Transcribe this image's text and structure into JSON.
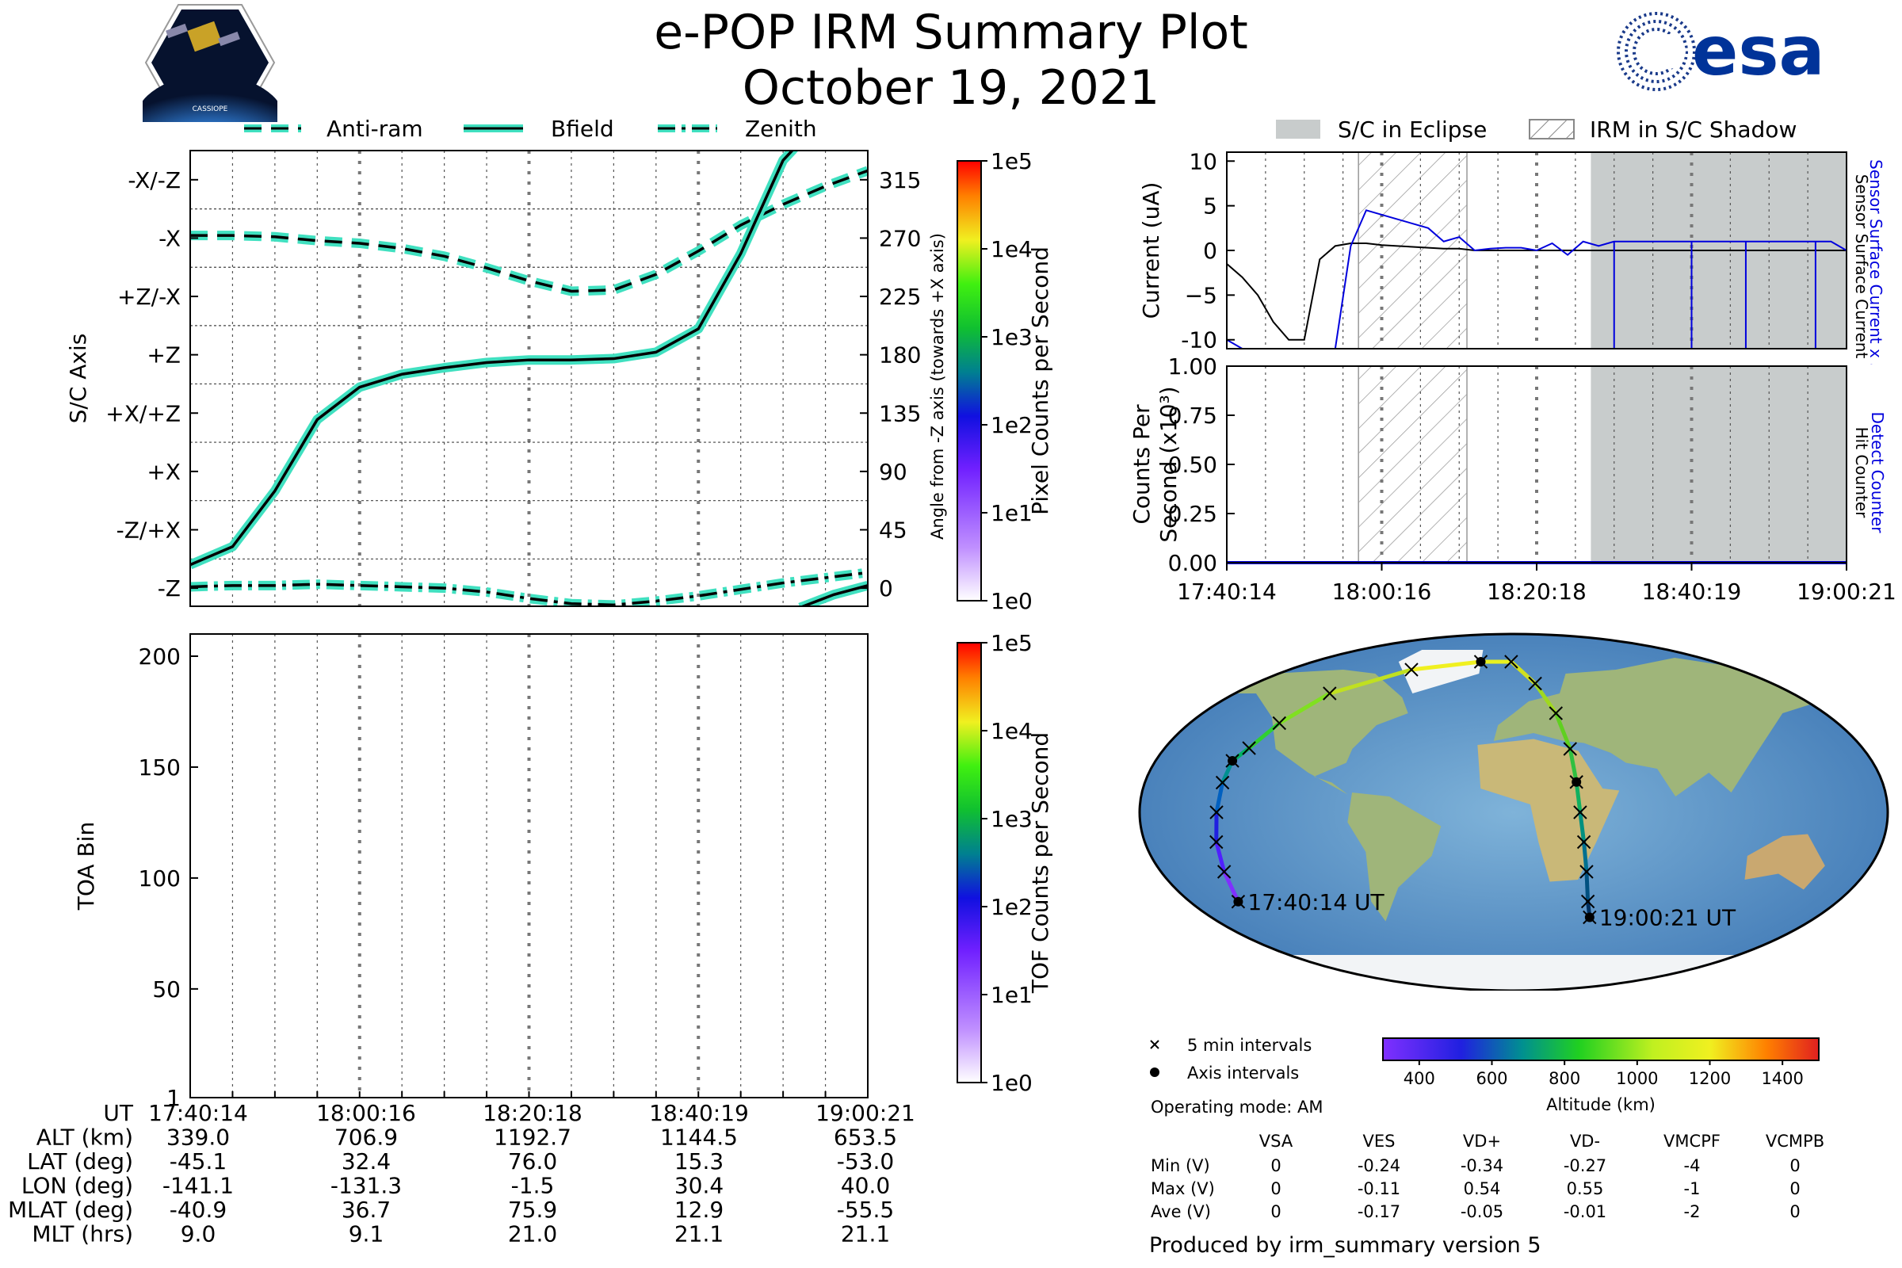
{
  "header": {
    "title": "e-POP IRM Summary Plot",
    "date": "October 19, 2021",
    "left_logo_text": "CASSIOPE",
    "right_logo_text": "esa"
  },
  "colors": {
    "bfield": "#40e0c0",
    "eclipse": "#c8cccc",
    "sensor_current": "#0000dd",
    "detect_counter": "#0000dd"
  },
  "chart_data": [
    {
      "id": "sc_axis",
      "type": "line",
      "ylabel": "S/C Axis",
      "ylabel_right": "Angle from -Z axis (towards +X axis)",
      "ylim": [
        0,
        337.5
      ],
      "left_ticks": [
        {
          "v": 0,
          "label": "-Z"
        },
        {
          "v": 45,
          "label": "-Z/+X"
        },
        {
          "v": 90,
          "label": "+X"
        },
        {
          "v": 135,
          "label": "+X/+Z"
        },
        {
          "v": 180,
          "label": "+Z"
        },
        {
          "v": 225,
          "label": "+Z/-X"
        },
        {
          "v": 270,
          "label": "-X"
        },
        {
          "v": 315,
          "label": "-X/-Z"
        }
      ],
      "right_ticks": [
        "0",
        "45",
        "90",
        "135",
        "180",
        "225",
        "270",
        "315"
      ],
      "x": [
        0,
        5,
        10,
        15,
        20,
        25,
        30,
        35,
        40,
        45,
        50,
        55,
        60,
        65,
        70,
        75,
        80
      ],
      "series": [
        {
          "name": "Anti-ram",
          "style": "dashed",
          "values": [
            272,
            272,
            271,
            268,
            266,
            262,
            256,
            247,
            237,
            229,
            230,
            242,
            260,
            280,
            296,
            310,
            322
          ]
        },
        {
          "name": "Bfield",
          "style": "solid",
          "values": [
            18,
            32,
            75,
            130,
            155,
            165,
            170,
            174,
            176,
            176,
            177,
            182,
            200,
            258,
            330,
            365,
            395
          ]
        },
        {
          "name": "Zenith",
          "style": "dashdot",
          "values": [
            1,
            2,
            2,
            3,
            2,
            1,
            0,
            -3,
            -8,
            -12,
            -13,
            -10,
            -6,
            -1,
            4,
            8,
            12
          ]
        }
      ],
      "colorbar": {
        "label": "Pixel Counts per Second",
        "ticks": [
          "1e0",
          "1e1",
          "1e2",
          "1e3",
          "1e4",
          "1e5"
        ]
      }
    },
    {
      "id": "toa",
      "type": "heatmap",
      "ylabel": "TOA Bin",
      "ylim": [
        1,
        210
      ],
      "yticks": [
        "1",
        "50",
        "100",
        "150",
        "200"
      ],
      "colorbar": {
        "label": "TOF Counts per Second",
        "ticks": [
          "1e0",
          "1e1",
          "1e2",
          "1e3",
          "1e4",
          "1e5"
        ]
      }
    },
    {
      "id": "current",
      "type": "line",
      "ylabel": "Current (uA)",
      "ylim": [
        -11,
        11
      ],
      "yticks": [
        "-10",
        "−5",
        "0",
        "5",
        "10"
      ],
      "right_labels": [
        "Sensor Surface Current x 5",
        "Sensor Surface Current"
      ],
      "legend": [
        "S/C in Eclipse",
        "IRM in S/C Shadow"
      ],
      "eclipse": [
        [
          47,
          80
        ]
      ],
      "shadow": [
        [
          17,
          31
        ]
      ],
      "x": [
        0,
        2,
        4,
        6,
        8,
        10,
        12,
        14,
        16,
        18,
        20,
        22,
        24,
        26,
        28,
        30,
        32,
        34,
        36,
        38,
        40,
        42,
        44,
        46,
        48,
        50,
        52,
        54,
        56,
        58,
        60,
        62,
        64,
        66,
        68,
        70,
        72,
        74,
        76,
        78,
        80
      ],
      "series": [
        {
          "name": "Sensor Surface Current x 5",
          "values": [
            -10,
            -11,
            -11,
            -11,
            -11,
            -11,
            -11,
            -11,
            0.5,
            4.5,
            4,
            3.5,
            3,
            2.5,
            1,
            1.5,
            0,
            0.2,
            0.3,
            0.3,
            0,
            0.8,
            -0.5,
            1,
            0.5,
            1,
            1,
            1,
            1,
            1,
            1,
            1,
            1,
            1,
            1,
            1,
            1,
            1,
            1,
            1,
            0
          ]
        },
        {
          "name": "Sensor Surface Current",
          "values": [
            -1.5,
            -3,
            -5,
            -8,
            -10,
            -10,
            -1,
            0.5,
            0.8,
            0.8,
            0.6,
            0.5,
            0.4,
            0.3,
            0.2,
            0.2,
            0,
            0,
            0,
            0,
            0,
            0,
            0,
            0,
            0,
            0,
            0,
            0,
            0,
            0,
            0,
            0,
            0,
            0,
            0,
            0,
            0,
            0,
            0,
            0,
            0
          ]
        }
      ]
    },
    {
      "id": "counts",
      "type": "line",
      "ylabel": "Counts Per",
      "ylabel2": "Second (x10³)",
      "ylim": [
        0,
        1
      ],
      "yticks": [
        "0.00",
        "0.25",
        "0.50",
        "0.75",
        "1.00"
      ],
      "right_labels": [
        "Detect Counter",
        "Hit Counter"
      ],
      "xticks": [
        "17:40:14",
        "18:00:16",
        "18:20:18",
        "18:40:19",
        "19:00:21"
      ],
      "series": [
        {
          "name": "Detect Counter",
          "values": [
            0,
            0
          ]
        }
      ]
    },
    {
      "id": "map",
      "type": "scatter",
      "start_label": "17:40:14 UT",
      "end_label": "19:00:21 UT",
      "legend": [
        "5 min intervals",
        "Axis intervals"
      ],
      "colorbar": {
        "label": "Altitude (km)",
        "ticks": [
          "400",
          "600",
          "800",
          "1000",
          "1200",
          "1400"
        ]
      },
      "track_lon": [
        -141.1,
        -143,
        -144,
        -143,
        -141,
        -138,
        -131.3,
        -120,
        -100,
        -60,
        -20,
        -1.5,
        12,
        22,
        28,
        30.4,
        32,
        34,
        36,
        38,
        40.0
      ],
      "track_lat": [
        -45.1,
        -30,
        -15,
        0,
        15,
        26,
        32.4,
        45,
        60,
        72,
        76,
        76.0,
        65,
        50,
        32,
        15.3,
        0,
        -15,
        -30,
        -45,
        -53.0
      ]
    }
  ],
  "info_table": {
    "row_labels": [
      "UT",
      "ALT (km)",
      "LAT (deg)",
      "LON (deg)",
      "MLAT (deg)",
      "MLT (hrs)"
    ],
    "columns": [
      [
        "17:40:14",
        "339.0",
        "-45.1",
        "-141.1",
        "-40.9",
        "9.0"
      ],
      [
        "18:00:16",
        "706.9",
        "32.4",
        "-131.3",
        "36.7",
        "9.1"
      ],
      [
        "18:20:18",
        "1192.7",
        "76.0",
        "-1.5",
        "75.9",
        "21.0"
      ],
      [
        "18:40:19",
        "1144.5",
        "15.3",
        "30.4",
        "12.9",
        "21.1"
      ],
      [
        "19:00:21",
        "653.5",
        "-53.0",
        "40.0",
        "-55.5",
        "21.1"
      ]
    ]
  },
  "operating_mode": "Operating mode: AM",
  "voltage_table": {
    "headers": [
      "VSA",
      "VES",
      "VD+",
      "VD-",
      "VMCPF",
      "VCMPB"
    ],
    "rows": [
      {
        "label": "Min (V)",
        "values": [
          "0",
          "-0.24",
          "-0.34",
          "-0.27",
          "-4",
          "0"
        ]
      },
      {
        "label": "Max (V)",
        "values": [
          "0",
          "-0.11",
          "0.54",
          "0.55",
          "-1",
          "0"
        ]
      },
      {
        "label": "Ave (V)",
        "values": [
          "0",
          "-0.17",
          "-0.05",
          "-0.01",
          "-2",
          "0"
        ]
      }
    ]
  },
  "footer": "Produced by irm_summary version 5"
}
